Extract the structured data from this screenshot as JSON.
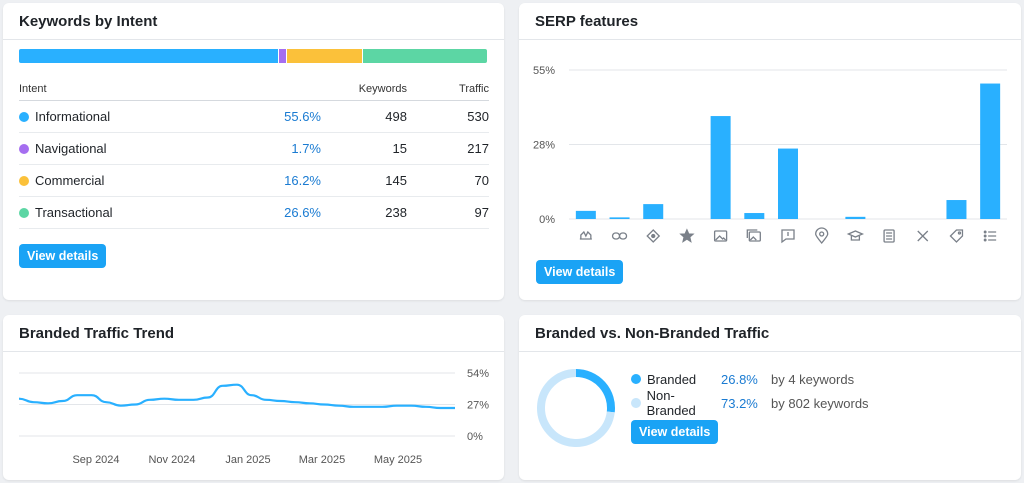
{
  "intent_card": {
    "title": "Keywords by Intent",
    "headers": {
      "intent": "Intent",
      "keywords": "Keywords",
      "traffic": "Traffic"
    },
    "rows": [
      {
        "name": "Informational",
        "pct": "55.6%",
        "share": 55.6,
        "keywords": "498",
        "traffic": "530",
        "color": "#29b0ff"
      },
      {
        "name": "Navigational",
        "pct": "1.7%",
        "share": 1.7,
        "keywords": "15",
        "traffic": "217",
        "color": "#a56ef0"
      },
      {
        "name": "Commercial",
        "pct": "16.2%",
        "share": 16.2,
        "keywords": "145",
        "traffic": "70",
        "color": "#fbc13a"
      },
      {
        "name": "Transactional",
        "pct": "26.6%",
        "share": 26.6,
        "keywords": "238",
        "traffic": "97",
        "color": "#5cd6a4"
      }
    ],
    "button": "View details"
  },
  "serp_card": {
    "title": "SERP features",
    "button": "View details",
    "chart_data": {
      "type": "bar",
      "y_ticks": [
        "55%",
        "28%",
        "0%"
      ],
      "ylim": [
        0,
        55
      ],
      "bar_color": "#29b0ff",
      "categories": [
        "reviews-icon",
        "link-icon",
        "knowledge-panel-icon",
        "star-icon",
        "image-icon",
        "image-pack-icon",
        "comment-icon",
        "location-icon",
        "education-icon",
        "news-icon",
        "x-icon",
        "tag-icon",
        "list-icon"
      ],
      "values": [
        3,
        0.6,
        5.5,
        0,
        38,
        2.2,
        26,
        0,
        0.8,
        0,
        0,
        7,
        50
      ]
    }
  },
  "trend_card": {
    "title": "Branded Traffic Trend",
    "chart_data": {
      "type": "line",
      "y_ticks": [
        "54%",
        "27%",
        "0%"
      ],
      "ylim": [
        0,
        54
      ],
      "line_color": "#29b0ff",
      "x_labels": [
        "Sep 2024",
        "Nov 2024",
        "Jan 2025",
        "Mar 2025",
        "May 2025"
      ],
      "values": [
        32,
        29,
        28,
        30,
        35,
        35,
        29,
        26,
        27,
        31,
        32,
        31,
        31,
        33,
        43,
        44,
        35,
        31,
        30,
        29,
        28,
        27,
        26,
        25,
        25,
        25,
        26,
        26,
        25,
        24,
        24
      ]
    }
  },
  "bvn_card": {
    "title": "Branded vs. Non-Branded Traffic",
    "chart_data": {
      "type": "pie",
      "slices": [
        {
          "name": "Branded",
          "pct": "26.8%",
          "value": 26.8,
          "keywords": "by 4 keywords",
          "color": "#29b0ff"
        },
        {
          "name": "Non-Branded",
          "pct": "73.2%",
          "value": 73.2,
          "keywords": "by 802 keywords",
          "color": "#c8e6fb"
        }
      ]
    },
    "button": "View details"
  }
}
